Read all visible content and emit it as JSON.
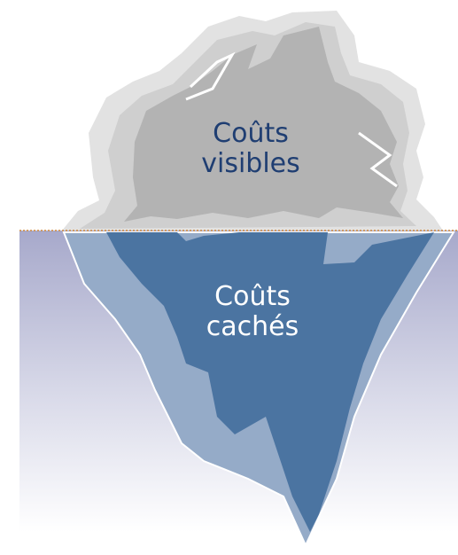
{
  "labels": {
    "above_water": "Coûts visibles",
    "below_water": "Coûts cachés"
  }
}
